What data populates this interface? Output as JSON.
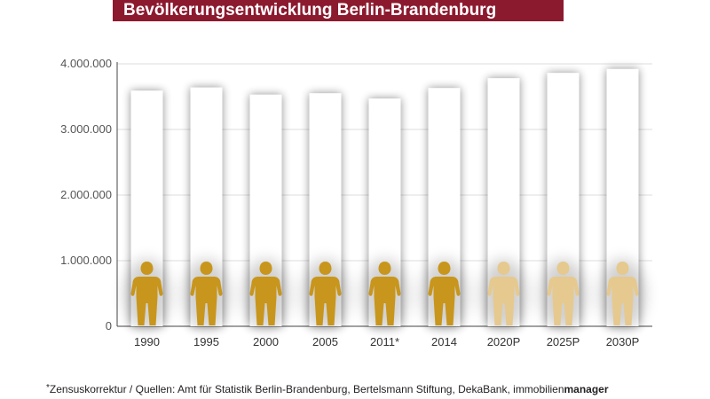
{
  "title": "Bevölkerungsentwicklung Berlin-Brandenburg",
  "colors": {
    "banner": "#8c1a2f",
    "figure_actual": "#c8961c",
    "figure_projected": "#e6c98e",
    "bar_fill": "#ffffff"
  },
  "icons": {
    "person": "person-figure-icon"
  },
  "chart_data": {
    "type": "bar",
    "categories": [
      "1990",
      "1995",
      "2000",
      "2005",
      "2011*",
      "2014",
      "2020P",
      "2025P",
      "2030P"
    ],
    "values": [
      3590000,
      3640000,
      3530000,
      3550000,
      3470000,
      3630000,
      3780000,
      3860000,
      3920000
    ],
    "projected": [
      false,
      false,
      false,
      false,
      false,
      false,
      true,
      true,
      true
    ],
    "ylim": [
      0,
      4000000
    ],
    "yticks": [
      0,
      1000000,
      2000000,
      3000000,
      4000000
    ],
    "ytick_labels": [
      "0",
      "1.000.000",
      "2.000.000",
      "3.000.000",
      "4.000.000"
    ],
    "grid": true
  },
  "footnote": {
    "star": "*",
    "text": "Zensuskorrektur / Quellen: Amt für Statistik Berlin-Brandenburg, Bertelsmann Stiftung, DekaBank, immobilien",
    "brand": "manager"
  }
}
